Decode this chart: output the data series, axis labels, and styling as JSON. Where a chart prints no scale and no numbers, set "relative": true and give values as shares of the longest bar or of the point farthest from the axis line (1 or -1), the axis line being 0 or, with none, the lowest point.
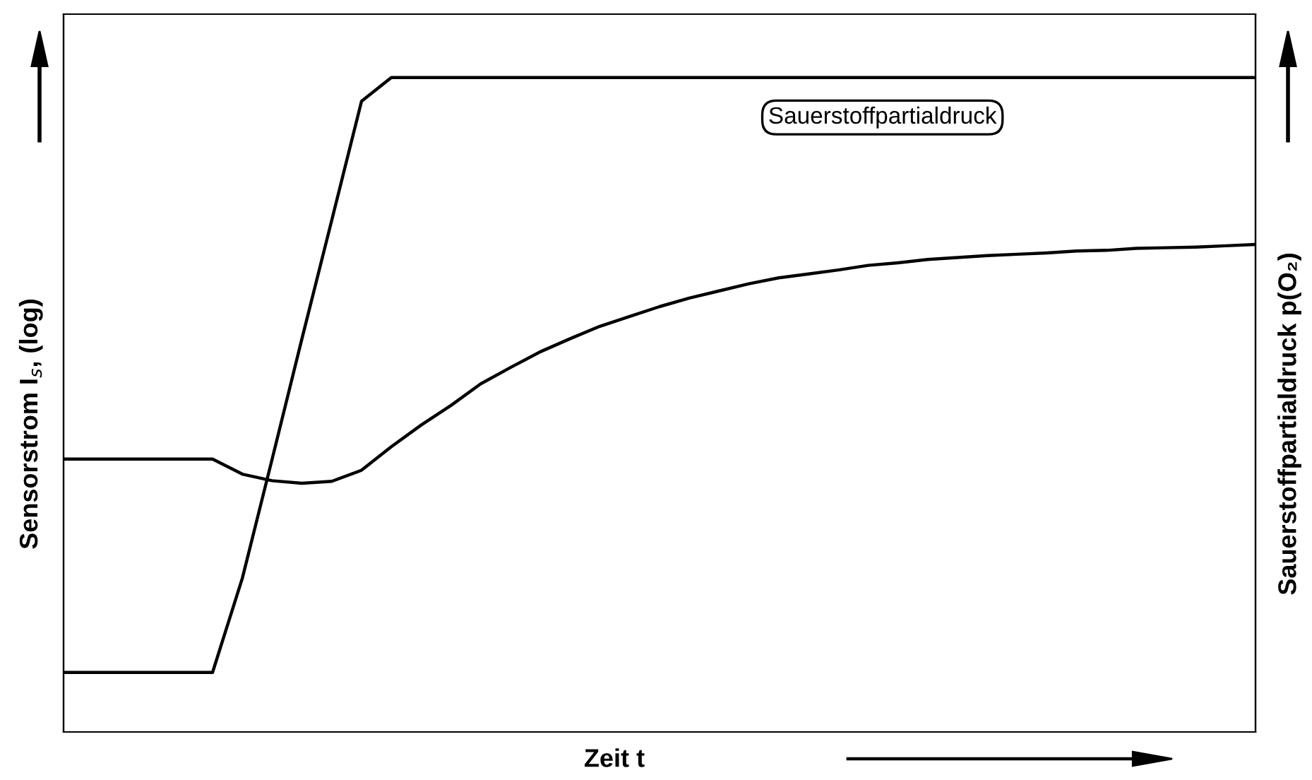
{
  "chart_data": {
    "type": "line",
    "relative": true,
    "xlabel": "Zeit t",
    "ylabel": "Sensorstrom I$_{s}$, (log)",
    "y2label": "Sauerstoffpartialdruck p(O₂)",
    "legend": false,
    "marker": "none",
    "line_style": "solid",
    "categories": [
      null,
      null,
      null,
      null,
      null,
      null,
      null,
      null,
      null,
      null,
      null,
      null,
      null,
      null,
      null,
      null,
      null,
      null,
      null,
      null,
      null,
      null,
      null,
      null,
      null,
      null,
      null,
      null,
      null,
      null,
      null,
      null,
      null,
      null,
      null,
      null,
      null,
      null,
      null,
      null,
      null
    ],
    "series": [
      {
        "color": "#000000",
        "values": [
          0.417,
          0.417,
          0.417,
          0.417,
          0.417,
          0.417,
          0.394,
          0.384,
          0.38,
          0.383,
          0.4,
          0.436,
          0.469,
          0.499,
          0.532,
          0.557,
          0.581,
          0.601,
          0.62,
          0.635,
          0.65,
          0.663,
          0.674,
          0.685,
          0.694,
          0.7,
          0.706,
          0.713,
          0.717,
          0.722,
          0.725,
          0.728,
          0.73,
          0.732,
          0.735,
          0.736,
          0.739,
          0.74,
          0.741,
          0.743,
          0.745
        ]
      },
      {
        "name": "Sauerstoffpartialdruck",
        "color": "#000000",
        "values": [
          0.091,
          0.091,
          0.091,
          0.091,
          0.091,
          0.091,
          0.235,
          0.417,
          0.601,
          0.782,
          0.964,
          1,
          1,
          1,
          1,
          1,
          1,
          1,
          1,
          1,
          1,
          1,
          1,
          1,
          1,
          1,
          1,
          1,
          1,
          1,
          1,
          1,
          1,
          1,
          1,
          1,
          1,
          1,
          1,
          1,
          1
        ]
      }
    ]
  }
}
